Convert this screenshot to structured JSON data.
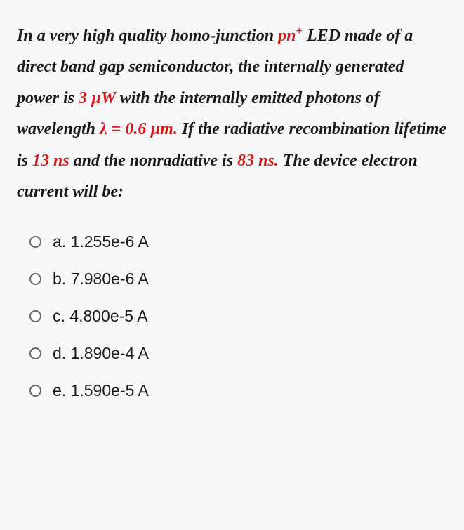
{
  "question": {
    "t1": "In a very high quality homo-junction ",
    "pn": "pn",
    "plus": "+",
    "t2": " LED made of a direct band gap semiconductor, the internally generated power is ",
    "power": "3 µW",
    "t3": " with the internally emitted photons of wavelength  ",
    "lambda": "λ = 0.6 µm.",
    "t4": "  If the radiative recombination lifetime is ",
    "rad": "13 ns",
    "t5": " and the nonradiative is ",
    "nonrad": "83 ns.",
    "t6": " The device electron current will be:"
  },
  "options": [
    {
      "label": "a. 1.255e-6 A"
    },
    {
      "label": "b. 7.980e-6 A"
    },
    {
      "label": "c. 4.800e-5 A"
    },
    {
      "label": "d. 1.890e-4 A"
    },
    {
      "label": "e. 1.590e-5 A"
    }
  ],
  "colors": {
    "background": "#f5f7f8",
    "text": "#1a1a1a",
    "red": "#d11a1a",
    "radio_border": "#6b6b6b"
  }
}
